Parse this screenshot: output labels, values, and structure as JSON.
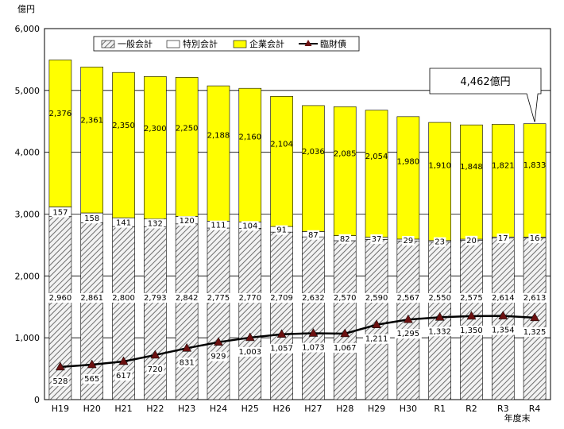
{
  "chart_data": {
    "type": "bar",
    "stacked": true,
    "y_unit_label": "億円",
    "x_axis_suffix_label": "年度末",
    "ylim": [
      0,
      6000
    ],
    "yticks": [
      0,
      1000,
      2000,
      3000,
      4000,
      5000,
      6000
    ],
    "ytick_labels": [
      "0",
      "1,000",
      "2,000",
      "3,000",
      "4,000",
      "5,000",
      "6,000"
    ],
    "grid": true,
    "legend_position": "top",
    "categories": [
      "H19",
      "H20",
      "H21",
      "H22",
      "H23",
      "H24",
      "H25",
      "H26",
      "H27",
      "H28",
      "H29",
      "H30",
      "R1",
      "R2",
      "R3",
      "R4"
    ],
    "series": [
      {
        "name": "一般会計",
        "kind": "bar",
        "pattern": "hatch",
        "values": [
          2960,
          2861,
          2800,
          2793,
          2842,
          2775,
          2770,
          2709,
          2632,
          2570,
          2590,
          2567,
          2550,
          2575,
          2614,
          2613
        ],
        "labels": [
          "2,960",
          "2,861",
          "2,800",
          "2,793",
          "2,842",
          "2,775",
          "2,770",
          "2,709",
          "2,632",
          "2,570",
          "2,590",
          "2,567",
          "2,550",
          "2,575",
          "2,614",
          "2,613"
        ]
      },
      {
        "name": "特別会計",
        "kind": "bar",
        "color": "#ffffff",
        "values": [
          157,
          158,
          141,
          132,
          120,
          111,
          104,
          91,
          87,
          82,
          37,
          29,
          23,
          20,
          17,
          16
        ],
        "labels": [
          "157",
          "158",
          "141",
          "132",
          "120",
          "111",
          "104",
          "91",
          "87",
          "82",
          "37",
          "29",
          "23",
          "20",
          "17",
          "16"
        ]
      },
      {
        "name": "企業会計",
        "kind": "bar",
        "color": "#ffff00",
        "values": [
          2376,
          2361,
          2350,
          2300,
          2250,
          2188,
          2160,
          2104,
          2036,
          2085,
          2054,
          1980,
          1910,
          1848,
          1821,
          1833
        ],
        "labels": [
          "2,376",
          "2,361",
          "2,350",
          "2,300",
          "2,250",
          "2,188",
          "2,160",
          "2,104",
          "2,036",
          "2,085",
          "2,054",
          "1,980",
          "1,910",
          "1,848",
          "1,821",
          "1,833"
        ]
      },
      {
        "name": "臨財債",
        "kind": "line",
        "color": "#000000",
        "marker_color": "#6b1010",
        "values": [
          528,
          565,
          617,
          720,
          831,
          929,
          1003,
          1057,
          1073,
          1067,
          1211,
          1295,
          1332,
          1350,
          1354,
          1325
        ],
        "labels": [
          "528",
          "565",
          "617",
          "720",
          "831",
          "929",
          "1,003",
          "1,057",
          "1,073",
          "1,067",
          "1,211",
          "1,295",
          "1,332",
          "1,350",
          "1,354",
          "1,325"
        ]
      }
    ],
    "callout": {
      "text": "4,462億円",
      "target_category": "R4"
    }
  }
}
